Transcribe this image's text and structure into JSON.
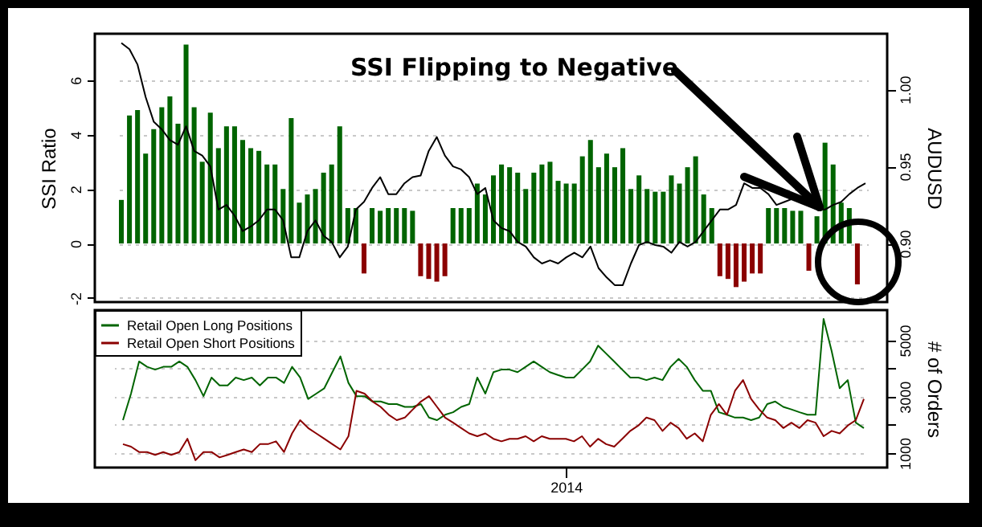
{
  "chart_data": [
    {
      "type": "bar",
      "annotations": [
        "SSI Flipping to Negative"
      ],
      "ylabel": "SSI Ratio",
      "y2label": "AUDUSD",
      "ylim": [
        -2.15,
        7.7
      ],
      "yticks": [
        -2,
        0,
        2,
        4,
        6
      ],
      "y2lim": [
        0.862,
        1.036
      ],
      "y2ticks": [
        {
          "value": 0.9,
          "label": "0.90"
        },
        {
          "value": 0.95,
          "label": "0.95"
        },
        {
          "value": 1,
          "label": "1.00"
        }
      ],
      "grid": "y",
      "tick_labels": "y",
      "categories": [
        null,
        null,
        null,
        null,
        null,
        null,
        null,
        null,
        null,
        null,
        null,
        null,
        null,
        null,
        null,
        null,
        null,
        null,
        null,
        null,
        null,
        null,
        null,
        null,
        null,
        null,
        null,
        null,
        null,
        null,
        null,
        null,
        null,
        null,
        null,
        null,
        null,
        null,
        null,
        null,
        null,
        null,
        null,
        null,
        null,
        null,
        null,
        null,
        null,
        null,
        null,
        null,
        null,
        null,
        null,
        null,
        null,
        null,
        null,
        null,
        null,
        null,
        null,
        null,
        null,
        null,
        null,
        null,
        null,
        null,
        null,
        null,
        null,
        null,
        null,
        null,
        null,
        null,
        null,
        null,
        null,
        null,
        null,
        null,
        null,
        null,
        null,
        null,
        null,
        null,
        null,
        null,
        null
      ],
      "series": [
        {
          "color": "#006400",
          "values": [
            1.6,
            4.7,
            4.9,
            3.3,
            4.2,
            5.0,
            5.4,
            4.4,
            7.3,
            5.0,
            3.0,
            4.8,
            3.5,
            4.3,
            4.3,
            3.8,
            3.5,
            3.4,
            2.9,
            2.9,
            2.0,
            4.6,
            1.5,
            1.8,
            2.0,
            2.6,
            2.9,
            4.3,
            1.3,
            1.3,
            null,
            1.3,
            1.2,
            1.3,
            1.3,
            1.3,
            1.2,
            null,
            null,
            null,
            null,
            1.3,
            1.3,
            1.3,
            2.2,
            1.8,
            2.5,
            2.9,
            2.8,
            2.6,
            2.0,
            2.6,
            2.9,
            3.0,
            2.3,
            2.2,
            2.2,
            3.2,
            3.8,
            2.8,
            3.3,
            2.8,
            3.5,
            2.0,
            2.5,
            2.0,
            1.9,
            1.9,
            2.5,
            2.2,
            2.8,
            3.2,
            1.8,
            1.3,
            null,
            null,
            null,
            null,
            null,
            null,
            1.3,
            1.3,
            1.3,
            1.2,
            1.2,
            null,
            1.0,
            3.7,
            2.9,
            1.5,
            1.3,
            null,
            null
          ]
        },
        {
          "color": "#8b0000",
          "values": [
            null,
            null,
            null,
            null,
            null,
            null,
            null,
            null,
            null,
            null,
            null,
            null,
            null,
            null,
            null,
            null,
            null,
            null,
            null,
            null,
            null,
            null,
            null,
            null,
            null,
            null,
            null,
            null,
            null,
            null,
            -1.1,
            null,
            null,
            null,
            null,
            null,
            null,
            -1.2,
            -1.3,
            -1.4,
            -1.2,
            null,
            null,
            null,
            null,
            null,
            null,
            null,
            null,
            null,
            null,
            null,
            null,
            null,
            null,
            null,
            null,
            null,
            null,
            null,
            null,
            null,
            null,
            null,
            null,
            null,
            null,
            null,
            null,
            null,
            null,
            null,
            null,
            null,
            -1.2,
            -1.3,
            -1.6,
            -1.4,
            -1.1,
            -1.1,
            null,
            null,
            null,
            null,
            null,
            -1.0,
            null,
            null,
            null,
            null,
            null,
            -1.5,
            null
          ]
        },
        {
          "type": "line",
          "axis": "y2",
          "color": "#000000",
          "values": [
            1.03,
            1.026,
            1.016,
            0.995,
            0.979,
            0.974,
            0.967,
            0.964,
            0.976,
            0.96,
            0.957,
            0.95,
            0.922,
            0.925,
            0.918,
            0.908,
            0.911,
            0.915,
            0.922,
            0.922,
            0.915,
            0.891,
            0.891,
            0.908,
            0.915,
            0.905,
            0.901,
            0.891,
            0.898,
            0.922,
            0.927,
            0.936,
            0.943,
            0.932,
            0.932,
            0.939,
            0.943,
            0.944,
            0.96,
            0.969,
            0.957,
            0.95,
            0.948,
            0.943,
            0.932,
            0.936,
            0.915,
            0.91,
            0.908,
            0.901,
            0.898,
            0.891,
            0.887,
            0.889,
            0.887,
            0.891,
            0.894,
            0.891,
            0.898,
            0.884,
            0.878,
            0.873,
            0.873,
            0.887,
            0.899,
            0.901,
            0.899,
            0.898,
            0.894,
            0.901,
            0.898,
            0.901,
            0.908,
            0.915,
            0.922,
            0.922,
            0.925,
            0.939,
            0.936,
            0.936,
            0.932,
            0.925,
            0.927,
            0.929,
            0.929,
            0.925,
            0.922,
            0.922,
            0.925,
            0.927,
            0.932,
            0.936,
            0.939
          ]
        }
      ]
    },
    {
      "type": "line",
      "ylabel": "# of Orders",
      "ylim": [
        490,
        6070
      ],
      "yticks": [
        1000,
        {
          "value": 2000,
          "label": null
        },
        3000,
        {
          "value": 4000,
          "label": null
        },
        5000
      ],
      "grid": "y",
      "legend": "top left",
      "categories": [
        null,
        null,
        null,
        null,
        null,
        null,
        null,
        null,
        null,
        null,
        null,
        null,
        null,
        null,
        null,
        null,
        null,
        null,
        null,
        null,
        null,
        null,
        null,
        null,
        null,
        null,
        null,
        null,
        null,
        null,
        null,
        null,
        null,
        null,
        null,
        null,
        null,
        null,
        null,
        null,
        null,
        null,
        null,
        null,
        null,
        null,
        null,
        null,
        null,
        null,
        null,
        null,
        null,
        null,
        null,
        "2014",
        null,
        null,
        null,
        null,
        null,
        null,
        null,
        null,
        null,
        null,
        null,
        null,
        null,
        null,
        null,
        null,
        null,
        null,
        null,
        null,
        null,
        null,
        null,
        null,
        null,
        null,
        null,
        null,
        null,
        null,
        null,
        null,
        null,
        null,
        null,
        null,
        null
      ],
      "series": [
        {
          "name": "Retail Open Long Positions",
          "color": "#006400",
          "values": [
            2170,
            3110,
            4250,
            4060,
            3960,
            4060,
            4060,
            4250,
            4060,
            3590,
            3020,
            3680,
            3400,
            3400,
            3680,
            3590,
            3680,
            3400,
            3680,
            3680,
            3490,
            4060,
            3680,
            2920,
            3110,
            3300,
            3870,
            4430,
            3490,
            3020,
            3020,
            2830,
            2830,
            2740,
            2740,
            2640,
            2640,
            2740,
            2260,
            2170,
            2360,
            2450,
            2640,
            2740,
            3680,
            3110,
            3870,
            3960,
            3960,
            3870,
            4060,
            4250,
            4060,
            3870,
            3770,
            3680,
            3680,
            3960,
            4250,
            4810,
            4530,
            4250,
            3960,
            3680,
            3680,
            3590,
            3680,
            3590,
            4060,
            4340,
            4060,
            3590,
            3210,
            3210,
            2450,
            2360,
            2260,
            2260,
            2170,
            2260,
            2740,
            2830,
            2640,
            2550,
            2450,
            2360,
            2360,
            5760,
            4620,
            3300,
            3590,
            2080,
            1890
          ]
        },
        {
          "name": "Retail Open Short Positions",
          "color": "#8b0000",
          "values": [
            1320,
            1230,
            1040,
            1040,
            940,
            1040,
            940,
            1040,
            1510,
            750,
            1040,
            1040,
            850,
            940,
            1040,
            1130,
            1040,
            1320,
            1320,
            1420,
            1040,
            1700,
            2170,
            1890,
            1700,
            1510,
            1320,
            1130,
            1600,
            3210,
            3110,
            2830,
            2640,
            2360,
            2170,
            2260,
            2550,
            2830,
            3020,
            2640,
            2260,
            2080,
            1890,
            1700,
            1600,
            1700,
            1510,
            1420,
            1510,
            1510,
            1600,
            1420,
            1600,
            1510,
            1510,
            1510,
            1420,
            1600,
            1230,
            1510,
            1320,
            1230,
            1510,
            1790,
            1980,
            2260,
            2170,
            1790,
            2080,
            1890,
            1510,
            1700,
            1420,
            2360,
            2740,
            2360,
            3210,
            3590,
            2920,
            2550,
            2260,
            2170,
            1890,
            2080,
            1890,
            2170,
            2080,
            1600,
            1790,
            1700,
            1980,
            2170,
            2920
          ]
        }
      ]
    }
  ]
}
